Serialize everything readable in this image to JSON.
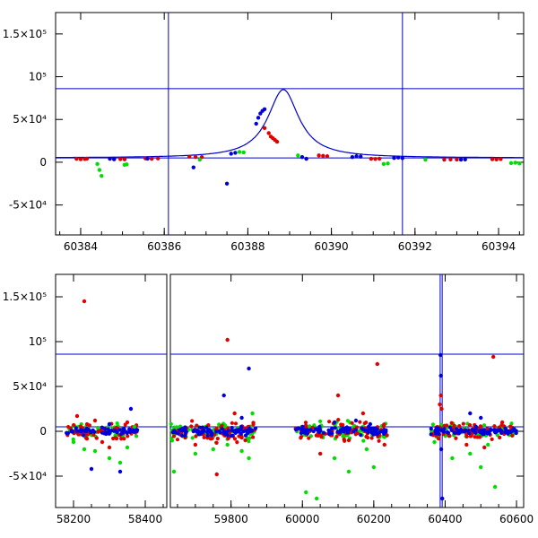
{
  "colors": {
    "red": "#e00000",
    "green": "#00dd00",
    "blue": "#0000dd",
    "line": "#0000cc",
    "frame": "#000000"
  },
  "chart_data": [
    {
      "type": "scatter",
      "panel": "top",
      "xlim": [
        60383.4,
        60394.6
      ],
      "ylim": [
        -85000,
        175000
      ],
      "xticks": [
        {
          "value": 60384,
          "label": "60384"
        },
        {
          "value": 60386,
          "label": "60386"
        },
        {
          "value": 60388,
          "label": "60388"
        },
        {
          "value": 60390,
          "label": "60390"
        },
        {
          "value": 60392,
          "label": "60392"
        },
        {
          "value": 60394,
          "label": "60394"
        }
      ],
      "yticks": [
        {
          "value": -50000,
          "label": "-5×10⁴"
        },
        {
          "value": 0,
          "label": "0"
        },
        {
          "value": 50000,
          "label": "5×10⁴"
        },
        {
          "value": 100000,
          "label": "10⁵"
        },
        {
          "value": 150000,
          "label": "1.5×10⁵"
        }
      ],
      "reference_lines": {
        "x": [
          60386.1,
          60391.7
        ],
        "y": [
          86000,
          5000
        ]
      },
      "model_curve": {
        "peak_x": 60388.85,
        "peak_y": 85000,
        "baseline": 5000,
        "width": 0.45
      },
      "series": [
        {
          "color": "red",
          "points": [
            [
              60383.9,
              4000
            ],
            [
              60384.0,
              3500
            ],
            [
              60384.1,
              3800
            ],
            [
              60384.15,
              4200
            ],
            [
              60384.8,
              3500
            ],
            [
              60384.95,
              3600
            ],
            [
              60385.05,
              3400
            ],
            [
              60385.55,
              4500
            ],
            [
              60385.7,
              4000
            ],
            [
              60385.85,
              4400
            ],
            [
              60386.6,
              6500
            ],
            [
              60386.75,
              6200
            ],
            [
              60386.9,
              6000
            ],
            [
              60388.4,
              40000
            ],
            [
              60388.5,
              34000
            ],
            [
              60388.55,
              30000
            ],
            [
              60388.6,
              28000
            ],
            [
              60388.65,
              26000
            ],
            [
              60388.7,
              24000
            ],
            [
              60389.7,
              8000
            ],
            [
              60389.8,
              7500
            ],
            [
              60389.9,
              7000
            ],
            [
              60390.95,
              4000
            ],
            [
              60391.05,
              3800
            ],
            [
              60391.15,
              4200
            ],
            [
              60392.7,
              3000
            ],
            [
              60392.85,
              3200
            ],
            [
              60393.0,
              3100
            ],
            [
              60393.85,
              3500
            ],
            [
              60393.95,
              3300
            ],
            [
              60394.05,
              3700
            ]
          ]
        },
        {
          "color": "green",
          "points": [
            [
              60384.4,
              -2000
            ],
            [
              60384.45,
              -9000
            ],
            [
              60384.5,
              -16000
            ],
            [
              60385.05,
              -3000
            ],
            [
              60385.1,
              -2500
            ],
            [
              60386.85,
              3000
            ],
            [
              60387.8,
              12000
            ],
            [
              60387.9,
              11500
            ],
            [
              60389.2,
              8000
            ],
            [
              60391.25,
              -2000
            ],
            [
              60391.35,
              -1500
            ],
            [
              60392.25,
              3000
            ],
            [
              60394.3,
              -1000
            ],
            [
              60394.4,
              -500
            ],
            [
              60394.5,
              -1500
            ]
          ]
        },
        {
          "color": "blue",
          "points": [
            [
              60384.7,
              4000
            ],
            [
              60384.8,
              3500
            ],
            [
              60385.6,
              4200
            ],
            [
              60386.7,
              -6000
            ],
            [
              60387.5,
              -25000
            ],
            [
              60387.6,
              10000
            ],
            [
              60387.7,
              11000
            ],
            [
              60388.2,
              45000
            ],
            [
              60388.25,
              52000
            ],
            [
              60388.3,
              57000
            ],
            [
              60388.35,
              60000
            ],
            [
              60388.4,
              62000
            ],
            [
              60389.3,
              6000
            ],
            [
              60389.4,
              4000
            ],
            [
              60390.5,
              6000
            ],
            [
              60390.6,
              7000
            ],
            [
              60390.7,
              6500
            ],
            [
              60391.5,
              5000
            ],
            [
              60391.6,
              5500
            ],
            [
              60391.7,
              4800
            ],
            [
              60393.1,
              3000
            ],
            [
              60393.2,
              3200
            ]
          ]
        }
      ]
    },
    {
      "type": "scatter",
      "panel": "bottom",
      "segments": [
        {
          "xlim": [
            58150,
            58460
          ]
        },
        {
          "xlim": [
            59630,
            60620
          ]
        }
      ],
      "ylim": [
        -85000,
        175000
      ],
      "xticks": [
        {
          "value": 58200,
          "label": "58200"
        },
        {
          "value": 58400,
          "label": "58400"
        },
        {
          "value": 59800,
          "label": "59800"
        },
        {
          "value": 60000,
          "label": "60000"
        },
        {
          "value": 60200,
          "label": "60200"
        },
        {
          "value": 60400,
          "label": "60400"
        },
        {
          "value": 60600,
          "label": "60600"
        }
      ],
      "yticks": [
        {
          "value": -50000,
          "label": "-5×10⁴"
        },
        {
          "value": 0,
          "label": "0"
        },
        {
          "value": 50000,
          "label": "5×10⁴"
        },
        {
          "value": 100000,
          "label": "10⁵"
        },
        {
          "value": 150000,
          "label": "1.5×10⁵"
        }
      ],
      "reference_lines": {
        "x": [
          60386.1,
          60391.7
        ],
        "y": [
          86000,
          5000
        ]
      },
      "clusters": [
        {
          "x": [
            58180,
            58380
          ],
          "spread": 12000,
          "n": 60
        },
        {
          "x": [
            59630,
            59870
          ],
          "spread": 15000,
          "n": 80
        },
        {
          "x": [
            59980,
            60240
          ],
          "spread": 15000,
          "n": 80
        },
        {
          "x": [
            60360,
            60600
          ],
          "spread": 13000,
          "n": 80
        }
      ],
      "series": [
        {
          "color": "red",
          "points": [
            [
              58230,
              145000
            ],
            [
              58210,
              17000
            ],
            [
              58260,
              12000
            ],
            [
              58280,
              -12000
            ],
            [
              58300,
              -18000
            ],
            [
              58320,
              -8000
            ],
            [
              58350,
              10000
            ],
            [
              59700,
              -15000
            ],
            [
              59760,
              -48000
            ],
            [
              59790,
              102000
            ],
            [
              59810,
              20000
            ],
            [
              59840,
              -10000
            ],
            [
              60050,
              -25000
            ],
            [
              60100,
              40000
            ],
            [
              60130,
              -10000
            ],
            [
              60170,
              20000
            ],
            [
              60210,
              75000
            ],
            [
              60230,
              -15000
            ],
            [
              60385,
              30000
            ],
            [
              60388,
              40000
            ],
            [
              60390,
              25000
            ],
            [
              60460,
              -15000
            ],
            [
              60510,
              -18000
            ],
            [
              60535,
              83000
            ],
            [
              60560,
              10000
            ]
          ]
        },
        {
          "color": "green",
          "points": [
            [
              58200,
              -12000
            ],
            [
              58230,
              -20000
            ],
            [
              58260,
              -22000
            ],
            [
              58300,
              -30000
            ],
            [
              58330,
              -35000
            ],
            [
              58350,
              -18000
            ],
            [
              58370,
              5000
            ],
            [
              59640,
              -45000
            ],
            [
              59700,
              -25000
            ],
            [
              59750,
              -20000
            ],
            [
              59790,
              -15000
            ],
            [
              59830,
              -22000
            ],
            [
              59850,
              -30000
            ],
            [
              59860,
              20000
            ],
            [
              60010,
              -68000
            ],
            [
              60040,
              -75000
            ],
            [
              60090,
              -30000
            ],
            [
              60130,
              -45000
            ],
            [
              60180,
              -20000
            ],
            [
              60200,
              -40000
            ],
            [
              60370,
              -12000
            ],
            [
              60420,
              -30000
            ],
            [
              60470,
              -25000
            ],
            [
              60500,
              -40000
            ],
            [
              60520,
              -15000
            ],
            [
              60540,
              -62000
            ]
          ]
        },
        {
          "color": "blue",
          "points": [
            [
              58250,
              -42000
            ],
            [
              58330,
              -45000
            ],
            [
              58300,
              8000
            ],
            [
              58360,
              25000
            ],
            [
              59780,
              40000
            ],
            [
              59850,
              70000
            ],
            [
              59830,
              15000
            ],
            [
              60090,
              10000
            ],
            [
              60150,
              12000
            ],
            [
              60190,
              8000
            ],
            [
              60387,
              85000
            ],
            [
              60388,
              62000
            ],
            [
              60389,
              -20000
            ],
            [
              60392,
              -75000
            ],
            [
              60470,
              20000
            ],
            [
              60500,
              15000
            ]
          ]
        }
      ]
    }
  ]
}
